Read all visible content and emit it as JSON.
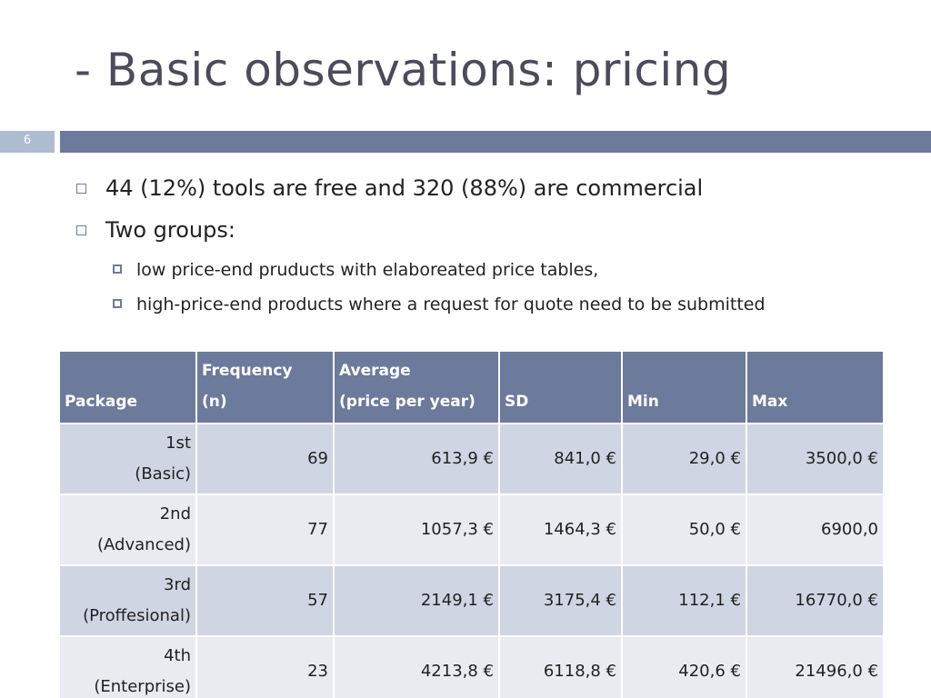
{
  "slide": {
    "title": "- Basic observations: pricing",
    "number": "6"
  },
  "bullets": [
    {
      "text": "44 (12%) tools are free and 320 (88%) are commercial"
    },
    {
      "text": "Two groups:"
    }
  ],
  "sub_bullets": [
    {
      "text": "low price-end pruducts with elaboreated price tables,"
    },
    {
      "text": "high-price-end products where a request for quote need to be submitted"
    }
  ],
  "table": {
    "headers": {
      "package": "Package",
      "frequency_line1": "Frequency",
      "frequency_line2": "(n)",
      "average_line1": "Average",
      "average_line2": "(price per year)",
      "sd": "SD",
      "min": "Min",
      "max": "Max"
    },
    "rows": [
      {
        "package_line1": "1st",
        "package_line2": "(Basic)",
        "frequency": "69",
        "average": "613,9 €",
        "sd": "841,0 €",
        "min": "29,0 €",
        "max": "3500,0 €"
      },
      {
        "package_line1": "2nd",
        "package_line2": "(Advanced)",
        "frequency": "77",
        "average": "1057,3 €",
        "sd": "1464,3 €",
        "min": "50,0 €",
        "max": "6900,0"
      },
      {
        "package_line1": "3rd",
        "package_line2": "(Proffesional)",
        "frequency": "57",
        "average": "2149,1 €",
        "sd": "3175,4 €",
        "min": "112,1 €",
        "max": "16770,0 €"
      },
      {
        "package_line1": "4th",
        "package_line2": "(Enterprise)",
        "frequency": "23",
        "average": "4213,8 €",
        "sd": "6118,8 €",
        "min": "420,6 €",
        "max": "21496,0 €"
      }
    ]
  },
  "colors": {
    "title": "#4b4b5a",
    "accent_bar": "#6c7a9c",
    "slide_number_box": "#aebcd0",
    "row_odd": "#d0d5e3",
    "row_even": "#e9ebf1"
  }
}
